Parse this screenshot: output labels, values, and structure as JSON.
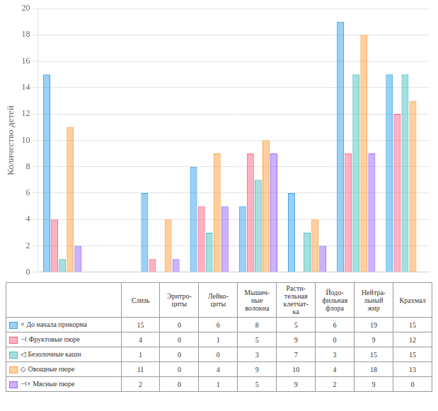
{
  "chart_data": {
    "type": "bar",
    "ylabel": "Количество детей",
    "categories": [
      "Слизь",
      "Эритро-\nциты",
      "Лейко-\nциты",
      "Мышеч-\nные\nволокна",
      "Расти-\nтельная\nклетчат-\nка",
      "Йодо-\nфильная\nфлора",
      "Нейтра-\nльный\nжир",
      "Крахмал"
    ],
    "series": [
      {
        "name": "× До начала прикорма",
        "values": [
          15,
          0,
          6,
          8,
          5,
          6,
          19,
          15
        ]
      },
      {
        "name": "⊣ Фруктовые пюре",
        "values": [
          4,
          0,
          1,
          5,
          9,
          0,
          9,
          12
        ]
      },
      {
        "name": "◁ Безолочные каши",
        "values": [
          1,
          0,
          0,
          3,
          7,
          3,
          15,
          15
        ]
      },
      {
        "name": "◇ Овощные пюре",
        "values": [
          11,
          0,
          4,
          9,
          10,
          4,
          18,
          13
        ]
      },
      {
        "name": "⊣× Мясные пюре",
        "values": [
          2,
          0,
          1,
          5,
          9,
          2,
          9,
          0
        ]
      }
    ],
    "ylim": [
      0,
      20
    ],
    "yticks": [
      0,
      2,
      4,
      6,
      8,
      10,
      12,
      14,
      16,
      18,
      20
    ],
    "grid": true,
    "tick_labels": "y"
  }
}
